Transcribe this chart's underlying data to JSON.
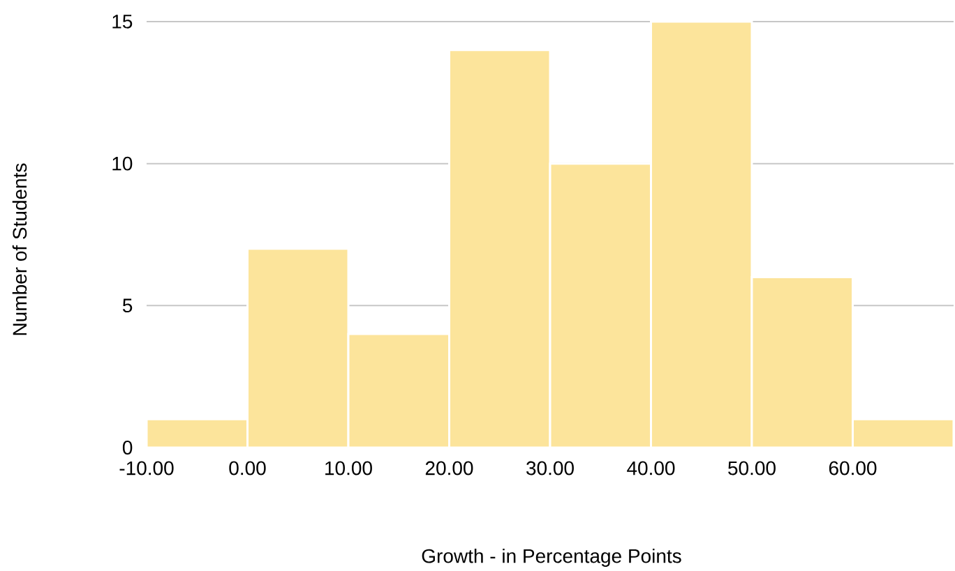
{
  "chart_data": {
    "type": "histogram",
    "xlabel": "Growth - in Percentage Points",
    "ylabel": "Number of Students",
    "bins": [
      -10,
      0,
      10,
      20,
      30,
      40,
      50,
      60,
      70
    ],
    "values": [
      1,
      7,
      4,
      14,
      10,
      15,
      6,
      1
    ],
    "color": "#fce49b",
    "xlim": [
      -10,
      70
    ],
    "ylim": [
      0,
      15
    ],
    "xticks": [
      {
        "value": -10,
        "label": "-10.00"
      },
      {
        "value": 0,
        "label": "0.00"
      },
      {
        "value": 10,
        "label": "10.00"
      },
      {
        "value": 20,
        "label": "20.00"
      },
      {
        "value": 30,
        "label": "30.00"
      },
      {
        "value": 40,
        "label": "40.00"
      },
      {
        "value": 50,
        "label": "50.00"
      },
      {
        "value": 60,
        "label": "60.00"
      }
    ],
    "yticks": [
      0,
      5,
      10,
      15
    ],
    "grid": "y"
  }
}
